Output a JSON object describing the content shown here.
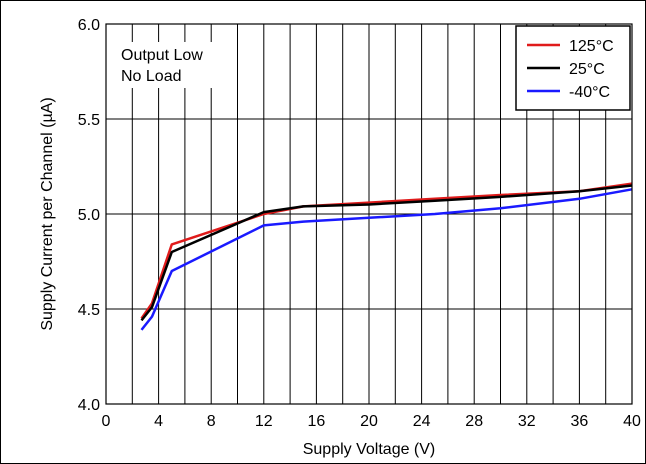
{
  "chart_data": {
    "type": "line",
    "title": "",
    "xlabel": "Supply Voltage (V)",
    "ylabel": "Supply Current per Channel (µA)",
    "xlim": [
      0,
      40
    ],
    "ylim": [
      4.0,
      6.0
    ],
    "x_ticks": [
      0,
      4,
      8,
      12,
      16,
      20,
      24,
      28,
      32,
      36,
      40
    ],
    "x_tick_labels": [
      "0",
      "4",
      "8",
      "12",
      "16",
      "20",
      "24",
      "28",
      "32",
      "36",
      "40"
    ],
    "y_ticks": [
      4.0,
      4.5,
      5.0,
      5.5,
      6.0
    ],
    "y_tick_labels": [
      "4.0",
      "4.5",
      "5.0",
      "5.5",
      "6.0"
    ],
    "grid": true,
    "legend_position": "top-right",
    "annotation": [
      "Output Low",
      "No Load"
    ],
    "series": [
      {
        "name": "125°C",
        "color": "#e01b1b",
        "x": [
          2.7,
          3.5,
          5,
          12,
          15,
          20,
          25,
          30,
          36,
          40
        ],
        "y": [
          4.45,
          4.53,
          4.84,
          5.0,
          5.04,
          5.06,
          5.08,
          5.1,
          5.12,
          5.16
        ]
      },
      {
        "name": "25°C",
        "color": "#000000",
        "x": [
          2.7,
          3.5,
          5,
          12,
          15,
          20,
          25,
          30,
          36,
          40
        ],
        "y": [
          4.44,
          4.51,
          4.8,
          5.01,
          5.04,
          5.05,
          5.07,
          5.09,
          5.12,
          5.15
        ]
      },
      {
        "name": "-40°C",
        "color": "#1a1aff",
        "x": [
          2.7,
          3.5,
          5,
          12,
          15,
          20,
          25,
          30,
          36,
          40
        ],
        "y": [
          4.39,
          4.46,
          4.7,
          4.94,
          4.96,
          4.98,
          5.0,
          5.03,
          5.08,
          5.13
        ]
      }
    ]
  }
}
